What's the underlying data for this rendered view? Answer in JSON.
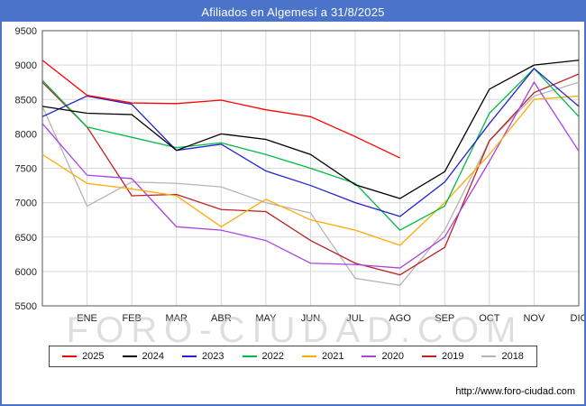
{
  "header": {
    "title": "Afiliados en Algemesí a 31/8/2025",
    "bar_color": "#4a73c9"
  },
  "watermark": "FORO-CIUDAD.COM",
  "footer": {
    "url": "http://www.foro-ciudad.com"
  },
  "chart_data": {
    "type": "line",
    "title": "Afiliados en Algemesí a 31/8/2025",
    "xlabel": "",
    "ylabel": "",
    "ylim": [
      5500,
      9500
    ],
    "y_ticks": [
      5500,
      6000,
      6500,
      7000,
      7500,
      8000,
      8500,
      9000,
      9500
    ],
    "grid": true,
    "legend_position": "bottom",
    "axis_note": "first value of each series sits on the left axis (previous December); 2025 series ends in AGO",
    "x_labels": [
      "",
      "ENE",
      "FEB",
      "MAR",
      "ABR",
      "MAY",
      "JUN",
      "JUL",
      "AGO",
      "SEP",
      "OCT",
      "NOV",
      "DIC"
    ],
    "series": [
      {
        "name": "2025",
        "color": "#ff0000",
        "values": [
          9071,
          8560,
          8450,
          8440,
          8490,
          8350,
          8250,
          7960,
          7650
        ]
      },
      {
        "name": "2024",
        "color": "#000000",
        "values": [
          8400,
          8300,
          8280,
          7760,
          8000,
          7920,
          7700,
          7260,
          7060,
          7450,
          8650,
          9000,
          9071
        ]
      },
      {
        "name": "2023",
        "color": "#2222cc",
        "values": [
          8250,
          8550,
          8430,
          7760,
          7850,
          7460,
          7250,
          7000,
          6800,
          7300,
          8150,
          8950,
          8400
        ]
      },
      {
        "name": "2022",
        "color": "#00bb44",
        "values": [
          8780,
          8100,
          7950,
          7800,
          7870,
          7700,
          7500,
          7280,
          6600,
          6950,
          8300,
          8950,
          8250
        ]
      },
      {
        "name": "2021",
        "color": "#ffaa00",
        "values": [
          7700,
          7280,
          7200,
          7100,
          6650,
          7050,
          6750,
          6600,
          6380,
          7000,
          7700,
          8500,
          8550
        ]
      },
      {
        "name": "2020",
        "color": "#aa44dd",
        "values": [
          8150,
          7400,
          7350,
          6650,
          6600,
          6450,
          6120,
          6100,
          6050,
          6500,
          7600,
          8750,
          7750
        ]
      },
      {
        "name": "2019",
        "color": "#bb2222",
        "values": [
          8750,
          8100,
          7100,
          7120,
          6900,
          6870,
          6450,
          6120,
          5950,
          6350,
          7900,
          8600,
          8870
        ]
      },
      {
        "name": "2018",
        "color": "#b5b5b5",
        "values": [
          8400,
          6950,
          7300,
          7280,
          7230,
          7000,
          6850,
          5900,
          5800,
          6600,
          7900,
          8550,
          8750
        ]
      }
    ]
  }
}
